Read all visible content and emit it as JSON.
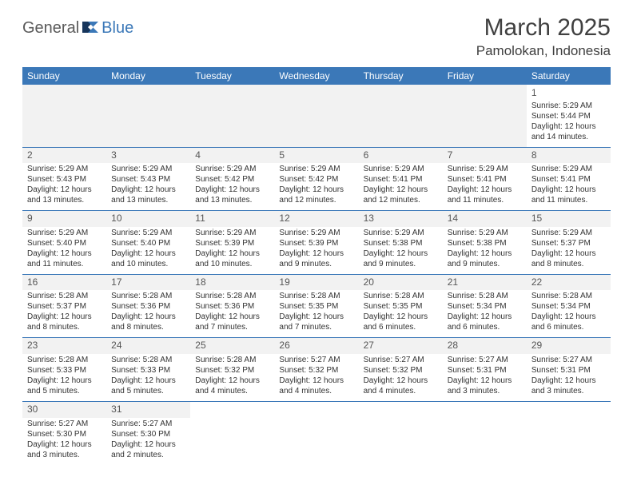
{
  "brand": {
    "text1": "General",
    "text2": "Blue",
    "color1": "#5a5a5a",
    "color2": "#3b78b8"
  },
  "header": {
    "month_title": "March 2025",
    "location": "Pamolokan, Indonesia"
  },
  "calendar": {
    "type": "table",
    "header_bg": "#3b78b8",
    "header_fg": "#ffffff",
    "border_color": "#3b78b8",
    "blank_bg": "#f2f2f2",
    "days_of_week": [
      "Sunday",
      "Monday",
      "Tuesday",
      "Wednesday",
      "Thursday",
      "Friday",
      "Saturday"
    ],
    "weeks": [
      [
        null,
        null,
        null,
        null,
        null,
        null,
        {
          "n": "1",
          "sr": "Sunrise: 5:29 AM",
          "ss": "Sunset: 5:44 PM",
          "d1": "Daylight: 12 hours",
          "d2": "and 14 minutes."
        }
      ],
      [
        {
          "n": "2",
          "sr": "Sunrise: 5:29 AM",
          "ss": "Sunset: 5:43 PM",
          "d1": "Daylight: 12 hours",
          "d2": "and 13 minutes."
        },
        {
          "n": "3",
          "sr": "Sunrise: 5:29 AM",
          "ss": "Sunset: 5:43 PM",
          "d1": "Daylight: 12 hours",
          "d2": "and 13 minutes."
        },
        {
          "n": "4",
          "sr": "Sunrise: 5:29 AM",
          "ss": "Sunset: 5:42 PM",
          "d1": "Daylight: 12 hours",
          "d2": "and 13 minutes."
        },
        {
          "n": "5",
          "sr": "Sunrise: 5:29 AM",
          "ss": "Sunset: 5:42 PM",
          "d1": "Daylight: 12 hours",
          "d2": "and 12 minutes."
        },
        {
          "n": "6",
          "sr": "Sunrise: 5:29 AM",
          "ss": "Sunset: 5:41 PM",
          "d1": "Daylight: 12 hours",
          "d2": "and 12 minutes."
        },
        {
          "n": "7",
          "sr": "Sunrise: 5:29 AM",
          "ss": "Sunset: 5:41 PM",
          "d1": "Daylight: 12 hours",
          "d2": "and 11 minutes."
        },
        {
          "n": "8",
          "sr": "Sunrise: 5:29 AM",
          "ss": "Sunset: 5:41 PM",
          "d1": "Daylight: 12 hours",
          "d2": "and 11 minutes."
        }
      ],
      [
        {
          "n": "9",
          "sr": "Sunrise: 5:29 AM",
          "ss": "Sunset: 5:40 PM",
          "d1": "Daylight: 12 hours",
          "d2": "and 11 minutes."
        },
        {
          "n": "10",
          "sr": "Sunrise: 5:29 AM",
          "ss": "Sunset: 5:40 PM",
          "d1": "Daylight: 12 hours",
          "d2": "and 10 minutes."
        },
        {
          "n": "11",
          "sr": "Sunrise: 5:29 AM",
          "ss": "Sunset: 5:39 PM",
          "d1": "Daylight: 12 hours",
          "d2": "and 10 minutes."
        },
        {
          "n": "12",
          "sr": "Sunrise: 5:29 AM",
          "ss": "Sunset: 5:39 PM",
          "d1": "Daylight: 12 hours",
          "d2": "and 9 minutes."
        },
        {
          "n": "13",
          "sr": "Sunrise: 5:29 AM",
          "ss": "Sunset: 5:38 PM",
          "d1": "Daylight: 12 hours",
          "d2": "and 9 minutes."
        },
        {
          "n": "14",
          "sr": "Sunrise: 5:29 AM",
          "ss": "Sunset: 5:38 PM",
          "d1": "Daylight: 12 hours",
          "d2": "and 9 minutes."
        },
        {
          "n": "15",
          "sr": "Sunrise: 5:29 AM",
          "ss": "Sunset: 5:37 PM",
          "d1": "Daylight: 12 hours",
          "d2": "and 8 minutes."
        }
      ],
      [
        {
          "n": "16",
          "sr": "Sunrise: 5:28 AM",
          "ss": "Sunset: 5:37 PM",
          "d1": "Daylight: 12 hours",
          "d2": "and 8 minutes."
        },
        {
          "n": "17",
          "sr": "Sunrise: 5:28 AM",
          "ss": "Sunset: 5:36 PM",
          "d1": "Daylight: 12 hours",
          "d2": "and 8 minutes."
        },
        {
          "n": "18",
          "sr": "Sunrise: 5:28 AM",
          "ss": "Sunset: 5:36 PM",
          "d1": "Daylight: 12 hours",
          "d2": "and 7 minutes."
        },
        {
          "n": "19",
          "sr": "Sunrise: 5:28 AM",
          "ss": "Sunset: 5:35 PM",
          "d1": "Daylight: 12 hours",
          "d2": "and 7 minutes."
        },
        {
          "n": "20",
          "sr": "Sunrise: 5:28 AM",
          "ss": "Sunset: 5:35 PM",
          "d1": "Daylight: 12 hours",
          "d2": "and 6 minutes."
        },
        {
          "n": "21",
          "sr": "Sunrise: 5:28 AM",
          "ss": "Sunset: 5:34 PM",
          "d1": "Daylight: 12 hours",
          "d2": "and 6 minutes."
        },
        {
          "n": "22",
          "sr": "Sunrise: 5:28 AM",
          "ss": "Sunset: 5:34 PM",
          "d1": "Daylight: 12 hours",
          "d2": "and 6 minutes."
        }
      ],
      [
        {
          "n": "23",
          "sr": "Sunrise: 5:28 AM",
          "ss": "Sunset: 5:33 PM",
          "d1": "Daylight: 12 hours",
          "d2": "and 5 minutes."
        },
        {
          "n": "24",
          "sr": "Sunrise: 5:28 AM",
          "ss": "Sunset: 5:33 PM",
          "d1": "Daylight: 12 hours",
          "d2": "and 5 minutes."
        },
        {
          "n": "25",
          "sr": "Sunrise: 5:28 AM",
          "ss": "Sunset: 5:32 PM",
          "d1": "Daylight: 12 hours",
          "d2": "and 4 minutes."
        },
        {
          "n": "26",
          "sr": "Sunrise: 5:27 AM",
          "ss": "Sunset: 5:32 PM",
          "d1": "Daylight: 12 hours",
          "d2": "and 4 minutes."
        },
        {
          "n": "27",
          "sr": "Sunrise: 5:27 AM",
          "ss": "Sunset: 5:32 PM",
          "d1": "Daylight: 12 hours",
          "d2": "and 4 minutes."
        },
        {
          "n": "28",
          "sr": "Sunrise: 5:27 AM",
          "ss": "Sunset: 5:31 PM",
          "d1": "Daylight: 12 hours",
          "d2": "and 3 minutes."
        },
        {
          "n": "29",
          "sr": "Sunrise: 5:27 AM",
          "ss": "Sunset: 5:31 PM",
          "d1": "Daylight: 12 hours",
          "d2": "and 3 minutes."
        }
      ],
      [
        {
          "n": "30",
          "sr": "Sunrise: 5:27 AM",
          "ss": "Sunset: 5:30 PM",
          "d1": "Daylight: 12 hours",
          "d2": "and 3 minutes."
        },
        {
          "n": "31",
          "sr": "Sunrise: 5:27 AM",
          "ss": "Sunset: 5:30 PM",
          "d1": "Daylight: 12 hours",
          "d2": "and 2 minutes."
        },
        null,
        null,
        null,
        null,
        null
      ]
    ]
  }
}
